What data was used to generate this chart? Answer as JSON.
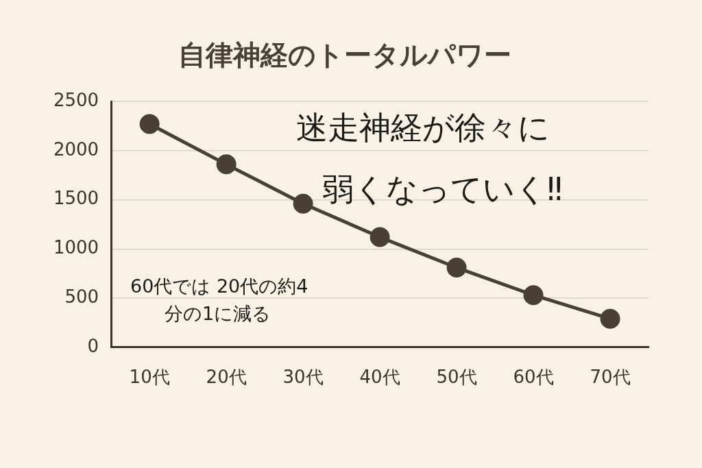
{
  "chart_data": {
    "type": "line",
    "title": "自律神経のトータルパワー",
    "categories": [
      "10代",
      "20代",
      "30代",
      "40代",
      "50代",
      "60代",
      "70代"
    ],
    "series": [
      {
        "color": "#4a3f36",
        "values": [
          2270,
          1860,
          1460,
          1120,
          810,
          530,
          290
        ]
      }
    ],
    "ylim": [
      0,
      2500
    ],
    "yticks": [
      0,
      500,
      1000,
      1500,
      2000,
      2500
    ],
    "grid": "y",
    "legend": false,
    "marker": "circle",
    "line_style": "solid",
    "annotations": [
      "迷走神経が徐々に",
      "弱くなっていく‼",
      "60代では 20代の約4",
      "分の1に減る"
    ]
  }
}
